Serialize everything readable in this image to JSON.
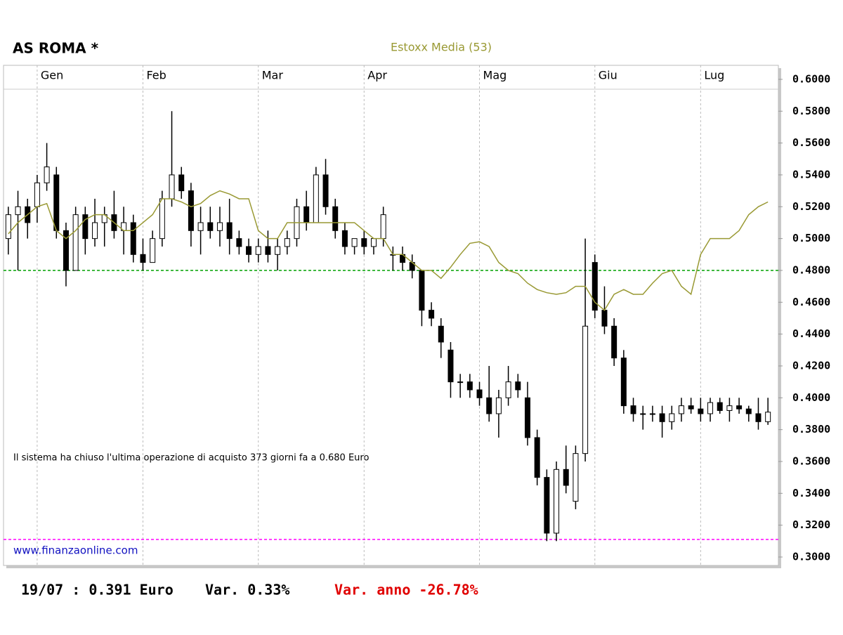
{
  "chart_data": {
    "type": "candlestick",
    "title": "AS ROMA *",
    "annotation": "Il sistema ha chiuso l'ultima operazione di acquisto 373 giorni fa a 0.680 Euro",
    "source": "www.finanzaonline.com",
    "footer": [
      "19/07 : 0.391 Euro",
      "Var. 0.33%",
      "Var. anno -26.78%"
    ],
    "categories": [
      null,
      null,
      null,
      "Gen",
      null,
      null,
      null,
      null,
      null,
      null,
      null,
      null,
      null,
      null,
      "Feb",
      null,
      null,
      null,
      null,
      null,
      null,
      null,
      null,
      null,
      null,
      null,
      "Mar",
      null,
      null,
      null,
      null,
      null,
      null,
      null,
      null,
      null,
      null,
      "Apr",
      null,
      null,
      null,
      null,
      null,
      null,
      null,
      null,
      null,
      null,
      null,
      "Mag",
      null,
      null,
      null,
      null,
      null,
      null,
      null,
      null,
      null,
      null,
      null,
      "Giu",
      null,
      null,
      null,
      null,
      null,
      null,
      null,
      null,
      null,
      null,
      "Lug",
      null,
      null,
      null,
      null,
      null,
      null,
      null
    ],
    "open": [
      0.5,
      0.515,
      0.52,
      0.52,
      0.535,
      0.54,
      0.505,
      0.48,
      0.515,
      0.5,
      0.51,
      0.515,
      0.505,
      0.51,
      0.49,
      0.485,
      0.5,
      0.525,
      0.54,
      0.53,
      0.505,
      0.51,
      0.505,
      0.51,
      0.5,
      0.495,
      0.49,
      0.495,
      0.49,
      0.495,
      0.5,
      0.52,
      0.51,
      0.54,
      0.52,
      0.505,
      0.495,
      0.5,
      0.495,
      0.5,
      0.49,
      0.49,
      0.485,
      0.48,
      0.455,
      0.445,
      0.43,
      0.41,
      0.41,
      0.405,
      0.4,
      0.39,
      0.4,
      0.41,
      0.4,
      0.375,
      0.35,
      0.315,
      0.355,
      0.335,
      0.365,
      0.485,
      0.455,
      0.445,
      0.425,
      0.395,
      0.39,
      0.39,
      0.39,
      0.385,
      0.39,
      0.395,
      0.393,
      0.39,
      0.397,
      0.392,
      0.395,
      0.393,
      0.39,
      0.385
    ],
    "high": [
      0.52,
      0.53,
      0.525,
      0.54,
      0.56,
      0.545,
      0.51,
      0.52,
      0.52,
      0.525,
      0.52,
      0.53,
      0.52,
      0.515,
      0.5,
      0.505,
      0.53,
      0.58,
      0.545,
      0.535,
      0.52,
      0.52,
      0.52,
      0.525,
      0.505,
      0.5,
      0.5,
      0.505,
      0.5,
      0.505,
      0.525,
      0.53,
      0.545,
      0.55,
      0.525,
      0.51,
      0.5,
      0.505,
      0.5,
      0.52,
      0.495,
      0.495,
      0.49,
      0.48,
      0.46,
      0.45,
      0.435,
      0.415,
      0.415,
      0.41,
      0.42,
      0.405,
      0.42,
      0.415,
      0.41,
      0.38,
      0.355,
      0.36,
      0.37,
      0.37,
      0.5,
      0.49,
      0.47,
      0.45,
      0.43,
      0.4,
      0.395,
      0.395,
      0.395,
      0.395,
      0.4,
      0.4,
      0.4,
      0.4,
      0.4,
      0.4,
      0.4,
      0.395,
      0.4,
      0.4
    ],
    "low": [
      0.49,
      0.48,
      0.5,
      0.51,
      0.53,
      0.5,
      0.47,
      0.48,
      0.49,
      0.495,
      0.495,
      0.5,
      0.49,
      0.485,
      0.48,
      0.485,
      0.495,
      0.52,
      0.525,
      0.495,
      0.49,
      0.5,
      0.495,
      0.49,
      0.49,
      0.485,
      0.485,
      0.485,
      0.48,
      0.49,
      0.495,
      0.505,
      0.51,
      0.515,
      0.5,
      0.49,
      0.49,
      0.49,
      0.49,
      0.495,
      0.48,
      0.48,
      0.475,
      0.445,
      0.445,
      0.425,
      0.4,
      0.4,
      0.4,
      0.395,
      0.385,
      0.375,
      0.395,
      0.4,
      0.37,
      0.345,
      0.31,
      0.31,
      0.34,
      0.33,
      0.36,
      0.45,
      0.44,
      0.42,
      0.39,
      0.385,
      0.38,
      0.385,
      0.375,
      0.38,
      0.385,
      0.39,
      0.385,
      0.385,
      0.39,
      0.385,
      0.39,
      0.385,
      0.38,
      0.383
    ],
    "close": [
      0.515,
      0.52,
      0.51,
      0.535,
      0.545,
      0.505,
      0.48,
      0.515,
      0.5,
      0.51,
      0.515,
      0.505,
      0.51,
      0.49,
      0.485,
      0.5,
      0.525,
      0.54,
      0.53,
      0.505,
      0.51,
      0.505,
      0.51,
      0.5,
      0.495,
      0.49,
      0.495,
      0.49,
      0.495,
      0.5,
      0.52,
      0.51,
      0.54,
      0.52,
      0.505,
      0.495,
      0.5,
      0.495,
      0.5,
      0.515,
      0.49,
      0.485,
      0.48,
      0.455,
      0.45,
      0.435,
      0.41,
      0.41,
      0.405,
      0.4,
      0.39,
      0.4,
      0.41,
      0.405,
      0.375,
      0.35,
      0.315,
      0.355,
      0.345,
      0.365,
      0.445,
      0.455,
      0.445,
      0.425,
      0.395,
      0.39,
      0.39,
      0.39,
      0.385,
      0.39,
      0.395,
      0.393,
      0.39,
      0.397,
      0.392,
      0.395,
      0.393,
      0.39,
      0.385,
      0.391
    ],
    "up_color": "#ffffff",
    "down_color": "#000000",
    "series": [
      {
        "name": "Estoxx Media (53)",
        "color": "#999933",
        "values": [
          0.503,
          0.51,
          0.515,
          0.52,
          0.522,
          0.505,
          0.5,
          0.505,
          0.512,
          0.515,
          0.515,
          0.51,
          0.505,
          0.505,
          0.51,
          0.515,
          0.525,
          0.525,
          0.523,
          0.52,
          0.522,
          0.527,
          0.53,
          0.528,
          0.525,
          0.525,
          0.505,
          0.5,
          0.5,
          0.51,
          0.51,
          0.51,
          0.51,
          0.51,
          0.51,
          0.51,
          0.51,
          0.505,
          0.5,
          0.5,
          0.49,
          0.49,
          0.485,
          0.48,
          0.48,
          0.475,
          0.482,
          0.49,
          0.497,
          0.498,
          0.495,
          0.485,
          0.48,
          0.478,
          0.472,
          0.468,
          0.466,
          0.465,
          0.466,
          0.47,
          0.47,
          0.46,
          0.455,
          0.465,
          0.468,
          0.465,
          0.465,
          0.472,
          0.478,
          0.48,
          0.47,
          0.465,
          0.49,
          0.5,
          0.5,
          0.5,
          0.505,
          0.515,
          0.52,
          0.523
        ]
      }
    ],
    "hlines": [
      {
        "value": 0.48,
        "color": "#00a000"
      },
      {
        "value": 0.311,
        "color": "#ff00ff"
      }
    ],
    "ylim": [
      0.2947,
      0.6088
    ],
    "yticks": [
      {
        "value": 0.3,
        "label": "0.3000"
      },
      {
        "value": 0.32,
        "label": "0.3200"
      },
      {
        "value": 0.34,
        "label": "0.3400"
      },
      {
        "value": 0.36,
        "label": "0.3600"
      },
      {
        "value": 0.38,
        "label": "0.3800"
      },
      {
        "value": 0.4,
        "label": "0.4000"
      },
      {
        "value": 0.42,
        "label": "0.4200"
      },
      {
        "value": 0.44,
        "label": "0.4400"
      },
      {
        "value": 0.46,
        "label": "0.4600"
      },
      {
        "value": 0.48,
        "label": "0.4800"
      },
      {
        "value": 0.5,
        "label": "0.5000"
      },
      {
        "value": 0.52,
        "label": "0.5200"
      },
      {
        "value": 0.54,
        "label": "0.5400"
      },
      {
        "value": 0.56,
        "label": "0.5600"
      },
      {
        "value": 0.58,
        "label": "0.5800"
      },
      {
        "value": 0.6,
        "label": "0.6000"
      }
    ]
  }
}
